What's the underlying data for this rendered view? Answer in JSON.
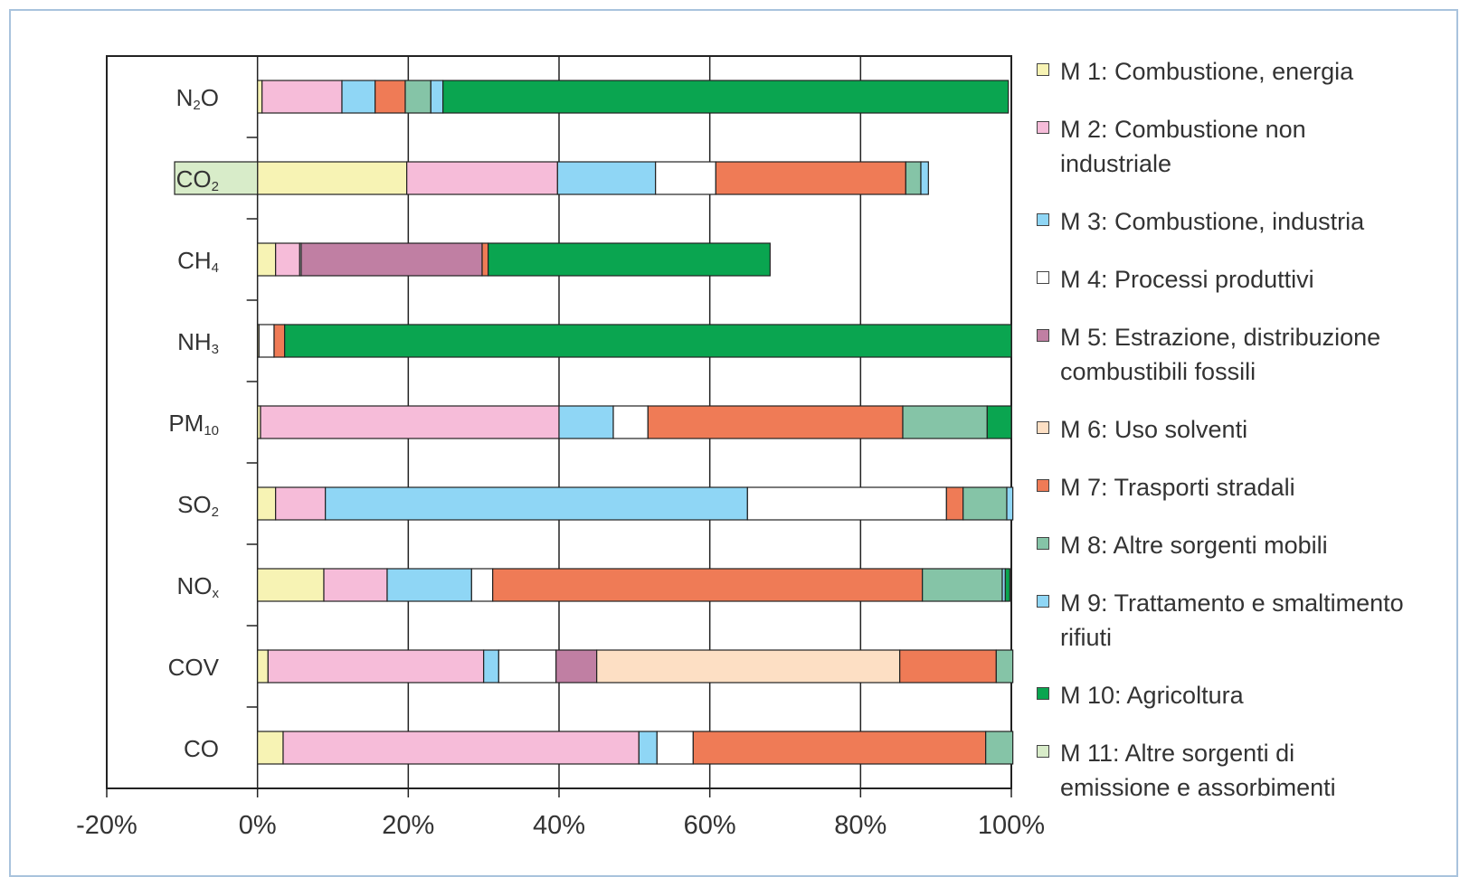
{
  "chart_data": {
    "type": "bar",
    "orientation": "horizontal",
    "stacked": true,
    "title": "",
    "xlabel": "",
    "ylabel": "",
    "xlim": [
      -20,
      100
    ],
    "x_ticks": [
      "-20%",
      "0%",
      "20%",
      "40%",
      "60%",
      "80%",
      "100%"
    ],
    "grid": "vertical",
    "legend_position": "right",
    "categories": [
      {
        "base": "N",
        "sub": "2",
        "tail": "O"
      },
      {
        "base": "CO",
        "sub": "2",
        "tail": ""
      },
      {
        "base": "CH",
        "sub": "4",
        "tail": ""
      },
      {
        "base": "NH",
        "sub": "3",
        "tail": ""
      },
      {
        "base": "PM",
        "sub": "10",
        "tail": ""
      },
      {
        "base": "SO",
        "sub": "2",
        "tail": ""
      },
      {
        "base": "NO",
        "sub": "x",
        "tail": ""
      },
      {
        "base": "COV",
        "sub": "",
        "tail": ""
      },
      {
        "base": "CO",
        "sub": "",
        "tail": ""
      }
    ],
    "series": [
      {
        "name": "M 1: Combustione, energia",
        "color": "#f7f3b4",
        "values": [
          0.6,
          19.8,
          2.4,
          0.2,
          0.4,
          2.4,
          8.8,
          1.4,
          3.4
        ]
      },
      {
        "name": "M 2: Combustione non industriale",
        "color": "#f6bcd9",
        "values": [
          10.6,
          20.0,
          3.2,
          0,
          39.6,
          6.6,
          8.4,
          28.6,
          47.2
        ]
      },
      {
        "name": "M 3: Combustione, industria",
        "color": "#8fd6f5",
        "values": [
          4.4,
          13.0,
          0,
          0,
          7.2,
          56.0,
          11.2,
          2.0,
          2.4
        ]
      },
      {
        "name": "M 4: Processi produttivi",
        "color": "#ffffff",
        "values": [
          0,
          8.0,
          0.2,
          2.0,
          4.6,
          26.4,
          2.8,
          7.6,
          4.8
        ]
      },
      {
        "name": "M 5: Estrazione, distribuzione combustibili fossili",
        "color": "#c07fa3",
        "values": [
          0,
          0,
          24.0,
          0,
          0,
          0,
          0,
          5.4,
          0
        ]
      },
      {
        "name": "M 6: Uso solventi",
        "color": "#fddfc4",
        "values": [
          0,
          0,
          0,
          0,
          0,
          0,
          0,
          40.2,
          0
        ]
      },
      {
        "name": "M 7: Trasporti stradali",
        "color": "#ef7b56",
        "values": [
          4.0,
          25.2,
          0.8,
          1.4,
          33.8,
          2.2,
          57.0,
          12.8,
          38.8
        ]
      },
      {
        "name": "M 8: Altre sorgenti mobili",
        "color": "#85c4a7",
        "values": [
          3.4,
          2.0,
          0,
          0,
          11.2,
          5.8,
          10.6,
          2.2,
          3.6
        ]
      },
      {
        "name": "M 9: Trattamento e smaltimento rifiuti",
        "color": "#8fd6f5",
        "values": [
          1.6,
          1.0,
          0,
          0,
          0,
          0.8,
          0.4,
          0,
          0
        ]
      },
      {
        "name": "M 10: Agricoltura",
        "color": "#0aa550",
        "values": [
          75.0,
          0,
          37.4,
          96.4,
          3.2,
          0,
          0.6,
          0,
          0
        ]
      },
      {
        "name": "M 11: Altre sorgenti di emissione e assorbimenti",
        "color": "#d8ecc9",
        "values": [
          0,
          -11.0,
          0,
          0,
          0,
          0,
          0,
          0,
          0
        ]
      }
    ]
  },
  "legend": [
    {
      "lines": [
        "M 1: Combustione, energia"
      ],
      "color": "#f7f3b4"
    },
    {
      "lines": [
        "M 2: Combustione non",
        "industriale"
      ],
      "color": "#f6bcd9"
    },
    {
      "lines": [
        "M 3: Combustione, industria"
      ],
      "color": "#8fd6f5"
    },
    {
      "lines": [
        "M 4: Processi produttivi"
      ],
      "color": "#ffffff"
    },
    {
      "lines": [
        "M 5: Estrazione, distribuzione",
        "combustibili fossili"
      ],
      "color": "#c07fa3"
    },
    {
      "lines": [
        "M 6: Uso solventi"
      ],
      "color": "#fddfc4"
    },
    {
      "lines": [
        "M 7: Trasporti stradali"
      ],
      "color": "#ef7b56"
    },
    {
      "lines": [
        "M 8: Altre sorgenti mobili"
      ],
      "color": "#85c4a7"
    },
    {
      "lines": [
        "M 9: Trattamento e smaltimento",
        "rifiuti"
      ],
      "color": "#8fd6f5"
    },
    {
      "lines": [
        "M 10: Agricoltura"
      ],
      "color": "#0aa550"
    },
    {
      "lines": [
        "M 11: Altre sorgenti di",
        "emissione e assorbimenti"
      ],
      "color": "#d8ecc9"
    }
  ]
}
